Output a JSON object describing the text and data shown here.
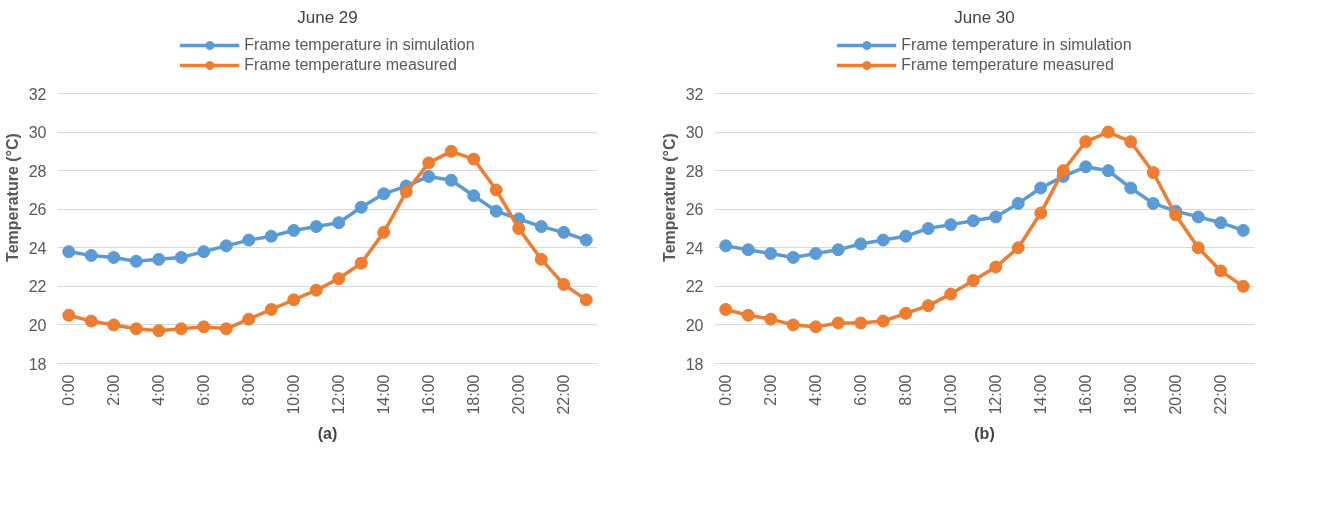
{
  "chart_data": [
    {
      "type": "line",
      "title": "June 29",
      "ylabel": "Temperature (°C)",
      "annotations": [
        "(a)"
      ],
      "grid": "y",
      "legend": "top",
      "marker": "circle",
      "line_style": "solid",
      "x": [
        0,
        1,
        2,
        3,
        4,
        5,
        6,
        7,
        8,
        9,
        10,
        11,
        12,
        13,
        14,
        15,
        16,
        17,
        18,
        19,
        20,
        21,
        22,
        23
      ],
      "xlim": [
        -0.5,
        23.5
      ],
      "xticks": [
        {
          "value": 0,
          "label": "0:00"
        },
        {
          "value": 2,
          "label": "2:00"
        },
        {
          "value": 4,
          "label": "4:00"
        },
        {
          "value": 6,
          "label": "6:00"
        },
        {
          "value": 8,
          "label": "8:00"
        },
        {
          "value": 10,
          "label": "10:00"
        },
        {
          "value": 12,
          "label": "12:00"
        },
        {
          "value": 14,
          "label": "14:00"
        },
        {
          "value": 16,
          "label": "16:00"
        },
        {
          "value": 18,
          "label": "18:00"
        },
        {
          "value": 20,
          "label": "20:00"
        },
        {
          "value": 22,
          "label": "22:00"
        }
      ],
      "ylim": [
        18,
        32
      ],
      "yticks": [
        18,
        20,
        22,
        24,
        26,
        28,
        30,
        32
      ],
      "series": [
        {
          "name": "Frame temperature in simulation",
          "color": "#5b9bd5",
          "values": [
            23.8,
            23.6,
            23.5,
            23.3,
            23.4,
            23.5,
            23.8,
            24.1,
            24.4,
            24.6,
            24.9,
            25.1,
            25.3,
            26.1,
            26.8,
            27.2,
            27.7,
            27.5,
            26.7,
            25.9,
            25.5,
            25.1,
            24.8,
            24.4
          ]
        },
        {
          "name": "Frame temperature measured",
          "color": "#ed7d31",
          "values": [
            20.5,
            20.2,
            20.0,
            19.8,
            19.7,
            19.8,
            19.9,
            19.8,
            20.3,
            20.8,
            21.3,
            21.8,
            22.4,
            23.2,
            24.8,
            26.9,
            28.4,
            29.0,
            28.6,
            27.0,
            25.0,
            23.4,
            22.1,
            21.3
          ]
        }
      ]
    },
    {
      "type": "line",
      "title": "June 30",
      "ylabel": "Temperature (°C)",
      "annotations": [
        "(b)"
      ],
      "grid": "y",
      "legend": "top",
      "marker": "circle",
      "line_style": "solid",
      "x": [
        0,
        1,
        2,
        3,
        4,
        5,
        6,
        7,
        8,
        9,
        10,
        11,
        12,
        13,
        14,
        15,
        16,
        17,
        18,
        19,
        20,
        21,
        22,
        23
      ],
      "xlim": [
        -0.5,
        23.5
      ],
      "xticks": [
        {
          "value": 0,
          "label": "0:00"
        },
        {
          "value": 2,
          "label": "2:00"
        },
        {
          "value": 4,
          "label": "4:00"
        },
        {
          "value": 6,
          "label": "6:00"
        },
        {
          "value": 8,
          "label": "8:00"
        },
        {
          "value": 10,
          "label": "10:00"
        },
        {
          "value": 12,
          "label": "12:00"
        },
        {
          "value": 14,
          "label": "14:00"
        },
        {
          "value": 16,
          "label": "16:00"
        },
        {
          "value": 18,
          "label": "18:00"
        },
        {
          "value": 20,
          "label": "20:00"
        },
        {
          "value": 22,
          "label": "22:00"
        }
      ],
      "ylim": [
        18,
        32
      ],
      "yticks": [
        18,
        20,
        22,
        24,
        26,
        28,
        30,
        32
      ],
      "series": [
        {
          "name": "Frame temperature in simulation",
          "color": "#5b9bd5",
          "values": [
            24.1,
            23.9,
            23.7,
            23.5,
            23.7,
            23.9,
            24.2,
            24.4,
            24.6,
            25.0,
            25.2,
            25.4,
            25.6,
            26.3,
            27.1,
            27.7,
            28.2,
            28.0,
            27.1,
            26.3,
            25.9,
            25.6,
            25.3,
            24.9
          ]
        },
        {
          "name": "Frame temperature measured",
          "color": "#ed7d31",
          "values": [
            20.8,
            20.5,
            20.3,
            20.0,
            19.9,
            20.1,
            20.1,
            20.2,
            20.6,
            21.0,
            21.6,
            22.3,
            23.0,
            24.0,
            25.8,
            28.0,
            29.5,
            30.0,
            29.5,
            27.9,
            25.7,
            24.0,
            22.8,
            22.0
          ]
        }
      ]
    }
  ]
}
